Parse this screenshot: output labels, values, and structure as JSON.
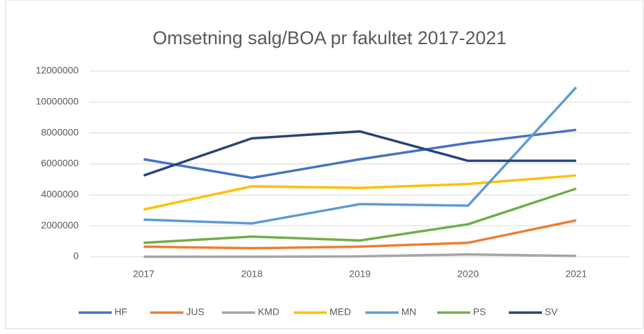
{
  "chart_data": {
    "type": "line",
    "title": "Omsetning salg/BOA pr fakultet 2017-2021",
    "categories": [
      "2017",
      "2018",
      "2019",
      "2020",
      "2021"
    ],
    "series": [
      {
        "name": "HF",
        "color": "#4472c4",
        "values": [
          6300000,
          5100000,
          6300000,
          7350000,
          8200000
        ]
      },
      {
        "name": "JUS",
        "color": "#ed7d31",
        "values": [
          650000,
          550000,
          650000,
          900000,
          2350000
        ]
      },
      {
        "name": "KMD",
        "color": "#a5a5a5",
        "values": [
          0,
          0,
          20000,
          150000,
          50000
        ]
      },
      {
        "name": "MED",
        "color": "#ffc000",
        "values": [
          3050000,
          4550000,
          4450000,
          4700000,
          5250000
        ]
      },
      {
        "name": "MN",
        "color": "#5b9bd5",
        "values": [
          2400000,
          2150000,
          3400000,
          3300000,
          10950000
        ]
      },
      {
        "name": "PS",
        "color": "#70ad47",
        "values": [
          900000,
          1300000,
          1050000,
          2100000,
          4400000
        ]
      },
      {
        "name": "SV",
        "color": "#264478",
        "values": [
          5250000,
          7650000,
          8100000,
          6200000,
          6200000
        ]
      }
    ],
    "ylim": [
      0,
      12000000
    ],
    "yticks": [
      0,
      2000000,
      4000000,
      6000000,
      8000000,
      10000000,
      12000000
    ],
    "grid": true,
    "legend": "bottom"
  }
}
